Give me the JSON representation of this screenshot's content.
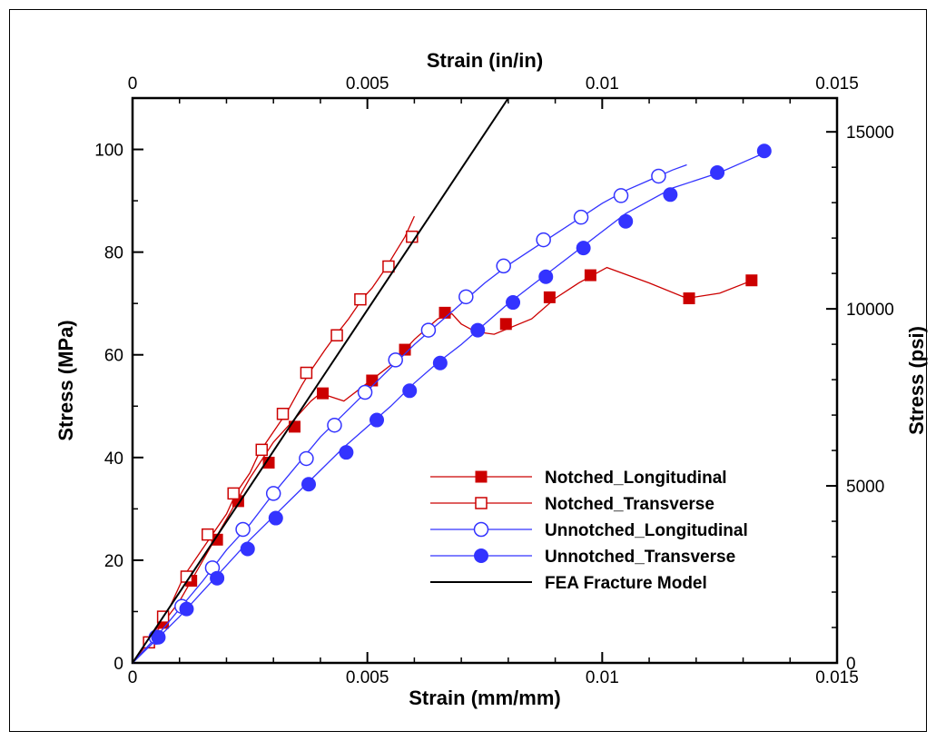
{
  "chart_data": {
    "type": "line",
    "title": "",
    "xlabel": "Strain (mm/mm)",
    "x2label": "Strain (in/in)",
    "ylabel": "Stress (MPa)",
    "y2label": "Stress (psi)",
    "xlim": [
      0,
      0.015
    ],
    "ylim": [
      0,
      110
    ],
    "y2lim": [
      0,
      15954
    ],
    "x_ticks": [
      0,
      0.005,
      0.01,
      0.015
    ],
    "x_tick_labels": [
      "0",
      "0.005",
      "0.01",
      "0.015"
    ],
    "x2_tick_labels": [
      "0",
      "0.005",
      "0.01",
      "0.015"
    ],
    "y_ticks": [
      0,
      20,
      40,
      60,
      80,
      100
    ],
    "y_tick_labels": [
      "0",
      "20",
      "40",
      "60",
      "80",
      "100"
    ],
    "y2_ticks": [
      0,
      5000,
      10000,
      15000
    ],
    "y2_tick_labels": [
      "0",
      "5000",
      "10000",
      "15000"
    ],
    "grid": false,
    "legend_position": "bottom-right",
    "series": [
      {
        "name": "Notched_Longitudinal",
        "color": "#cc0000",
        "marker": "filled-square",
        "line": [
          [
            0,
            0
          ],
          [
            0.0005,
            6
          ],
          [
            0.001,
            12
          ],
          [
            0.0015,
            20
          ],
          [
            0.002,
            28
          ],
          [
            0.0025,
            36
          ],
          [
            0.003,
            43
          ],
          [
            0.0035,
            48
          ],
          [
            0.0038,
            51
          ],
          [
            0.004,
            52.5
          ],
          [
            0.0045,
            51
          ],
          [
            0.005,
            54.5
          ],
          [
            0.0055,
            58
          ],
          [
            0.006,
            63
          ],
          [
            0.0065,
            67
          ],
          [
            0.0068,
            68
          ],
          [
            0.007,
            66
          ],
          [
            0.0073,
            64.5
          ],
          [
            0.0077,
            64
          ],
          [
            0.0085,
            67
          ],
          [
            0.009,
            71
          ],
          [
            0.0095,
            74
          ],
          [
            0.0098,
            75.5
          ],
          [
            0.0101,
            77
          ],
          [
            0.011,
            74
          ],
          [
            0.0118,
            71
          ],
          [
            0.0125,
            72
          ],
          [
            0.0132,
            74.5
          ]
        ],
        "points": [
          [
            0.00065,
            7.8
          ],
          [
            0.00125,
            16
          ],
          [
            0.0018,
            24
          ],
          [
            0.00225,
            31.5
          ],
          [
            0.0029,
            39
          ],
          [
            0.00345,
            46
          ],
          [
            0.00405,
            52.5
          ],
          [
            0.0051,
            55
          ],
          [
            0.0058,
            61
          ],
          [
            0.00665,
            68.2
          ],
          [
            0.00795,
            66
          ],
          [
            0.00888,
            71.2
          ],
          [
            0.00975,
            75.5
          ],
          [
            0.01185,
            71
          ],
          [
            0.01318,
            74.5
          ]
        ]
      },
      {
        "name": "Notched_Transverse",
        "color": "#cc0000",
        "marker": "open-square",
        "line": [
          [
            0,
            0
          ],
          [
            0.0004,
            5
          ],
          [
            0.0008,
            11
          ],
          [
            0.0011,
            17
          ],
          [
            0.0014,
            21
          ],
          [
            0.0017,
            25
          ],
          [
            0.002,
            29
          ],
          [
            0.0022,
            33
          ],
          [
            0.0025,
            37
          ],
          [
            0.0027,
            41
          ],
          [
            0.003,
            45
          ],
          [
            0.0033,
            49
          ],
          [
            0.0036,
            54
          ],
          [
            0.0038,
            57
          ],
          [
            0.0041,
            61
          ],
          [
            0.0043,
            63.5
          ],
          [
            0.0046,
            67
          ],
          [
            0.0049,
            71
          ],
          [
            0.0051,
            73
          ],
          [
            0.0054,
            77
          ],
          [
            0.0056,
            80
          ],
          [
            0.0058,
            83
          ],
          [
            0.006,
            87
          ]
        ],
        "points": [
          [
            0.00035,
            4
          ],
          [
            0.00065,
            9
          ],
          [
            0.00115,
            16.8
          ],
          [
            0.0016,
            25
          ],
          [
            0.00215,
            33
          ],
          [
            0.00275,
            41.5
          ],
          [
            0.0032,
            48.5
          ],
          [
            0.0037,
            56.5
          ],
          [
            0.00435,
            63.8
          ],
          [
            0.00485,
            70.8
          ],
          [
            0.00545,
            77.2
          ],
          [
            0.00595,
            83
          ]
        ]
      },
      {
        "name": "Unnotched_Longitudinal",
        "color": "#3333ff",
        "marker": "open-circle",
        "line": [
          [
            0,
            0
          ],
          [
            0.0005,
            5
          ],
          [
            0.001,
            10.5
          ],
          [
            0.0015,
            16
          ],
          [
            0.002,
            22
          ],
          [
            0.0025,
            27
          ],
          [
            0.003,
            33
          ],
          [
            0.0035,
            38.5
          ],
          [
            0.004,
            44
          ],
          [
            0.0045,
            48.5
          ],
          [
            0.005,
            53
          ],
          [
            0.0055,
            57.5
          ],
          [
            0.006,
            62
          ],
          [
            0.0065,
            66
          ],
          [
            0.007,
            70
          ],
          [
            0.0075,
            74
          ],
          [
            0.008,
            77.5
          ],
          [
            0.0085,
            80.5
          ],
          [
            0.009,
            83.5
          ],
          [
            0.0095,
            86.5
          ],
          [
            0.01,
            89.5
          ],
          [
            0.0105,
            92
          ],
          [
            0.011,
            94
          ],
          [
            0.0115,
            96
          ],
          [
            0.0118,
            97
          ]
        ],
        "points": [
          [
            0.0005,
            5
          ],
          [
            0.00105,
            11
          ],
          [
            0.0017,
            18.5
          ],
          [
            0.00235,
            26
          ],
          [
            0.003,
            33
          ],
          [
            0.0037,
            39.8
          ],
          [
            0.0043,
            46.3
          ],
          [
            0.00495,
            52.7
          ],
          [
            0.0056,
            59
          ],
          [
            0.0063,
            64.8
          ],
          [
            0.0071,
            71.3
          ],
          [
            0.0079,
            77.3
          ],
          [
            0.00875,
            82.4
          ],
          [
            0.00955,
            86.8
          ],
          [
            0.0104,
            91
          ],
          [
            0.0112,
            94.8
          ]
        ]
      },
      {
        "name": "Unnotched_Transverse",
        "color": "#3333ff",
        "marker": "filled-circle",
        "line": [
          [
            0,
            0
          ],
          [
            0.0005,
            4.5
          ],
          [
            0.001,
            9
          ],
          [
            0.0015,
            14
          ],
          [
            0.002,
            19
          ],
          [
            0.0025,
            24
          ],
          [
            0.003,
            28.5
          ],
          [
            0.0035,
            33
          ],
          [
            0.004,
            37.5
          ],
          [
            0.0045,
            42
          ],
          [
            0.005,
            46
          ],
          [
            0.0055,
            50
          ],
          [
            0.006,
            54.5
          ],
          [
            0.0065,
            58.5
          ],
          [
            0.007,
            62
          ],
          [
            0.0075,
            66
          ],
          [
            0.008,
            70
          ],
          [
            0.0085,
            73.5
          ],
          [
            0.009,
            77
          ],
          [
            0.0095,
            80.5
          ],
          [
            0.01,
            84
          ],
          [
            0.0105,
            87.5
          ],
          [
            0.011,
            90
          ],
          [
            0.0115,
            92.5
          ],
          [
            0.012,
            94
          ],
          [
            0.0125,
            95.5
          ],
          [
            0.013,
            97.5
          ],
          [
            0.0135,
            99.5
          ]
        ],
        "points": [
          [
            0.00055,
            5
          ],
          [
            0.00115,
            10.5
          ],
          [
            0.0018,
            16.5
          ],
          [
            0.00245,
            22.2
          ],
          [
            0.00305,
            28.2
          ],
          [
            0.00375,
            34.8
          ],
          [
            0.00455,
            41
          ],
          [
            0.0052,
            47.3
          ],
          [
            0.0059,
            53
          ],
          [
            0.00655,
            58.4
          ],
          [
            0.00735,
            64.8
          ],
          [
            0.0081,
            70.2
          ],
          [
            0.0088,
            75.2
          ],
          [
            0.0096,
            80.8
          ],
          [
            0.0105,
            86
          ],
          [
            0.01145,
            91.2
          ],
          [
            0.01245,
            95.5
          ],
          [
            0.01345,
            99.7
          ]
        ]
      },
      {
        "name": "FEA Fracture Model",
        "color": "#000000",
        "marker": "none",
        "line": [
          [
            0,
            0
          ],
          [
            0.0008,
            11
          ],
          [
            0.0016,
            22
          ],
          [
            0.0024,
            33
          ],
          [
            0.0032,
            44
          ],
          [
            0.004,
            55
          ],
          [
            0.0048,
            66
          ],
          [
            0.0056,
            77
          ],
          [
            0.0064,
            88
          ],
          [
            0.0072,
            99
          ],
          [
            0.008,
            110
          ]
        ],
        "points": []
      }
    ]
  }
}
